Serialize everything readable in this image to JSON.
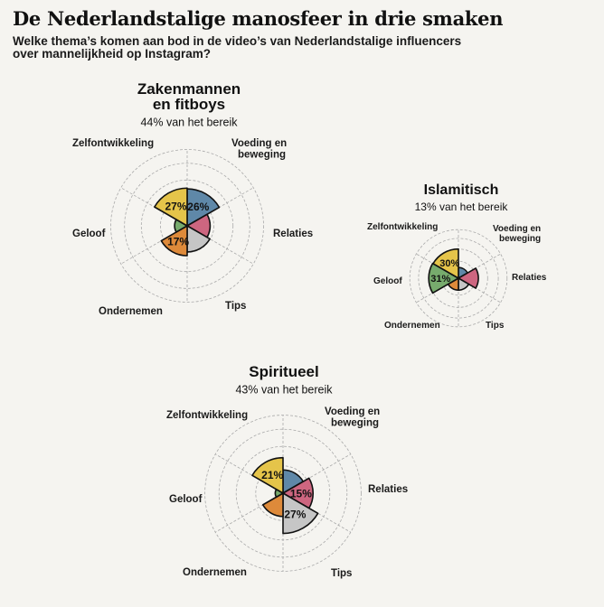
{
  "header": {
    "title": "De Nederlandstalige manosfeer in drie smaken",
    "subtitle": "Welke thema’s komen aan bod in de video’s van Nederlandstalige influencers over mannelijkheid op Instagram?"
  },
  "colors": {
    "Zelfontwikkeling": "#e5c44a",
    "Voeding en beweging": "#5f88a8",
    "Relaties": "#cd6680",
    "Tips": "#c6c6c6",
    "Ondernemen": "#de8a3a",
    "Geloof": "#77ab6d",
    "grid": "#aaaaaa",
    "outline": "#111111"
  },
  "chart_data": [
    {
      "type": "polar-area",
      "title_lines": [
        "Zakenmannen",
        "en fitboys"
      ],
      "subtitle": "44% van het bereik",
      "categories": [
        "Voeding en beweging",
        "Relaties",
        "Tips",
        "Ondernemen",
        "Geloof",
        "Zelfontwikkeling"
      ],
      "values": [
        26,
        10,
        13,
        17,
        3,
        27
      ],
      "value_labels": [
        "26%",
        "",
        "",
        "17%",
        "",
        "27%"
      ],
      "category_labels": [
        [
          "Voeding en",
          "beweging"
        ],
        [
          "Relaties"
        ],
        [
          "Tips"
        ],
        [
          "Ondernemen"
        ],
        [
          "Geloof"
        ],
        [
          "Zelfontwikkeling"
        ]
      ]
    },
    {
      "type": "polar-area",
      "title_lines": [
        "Islamitisch"
      ],
      "subtitle": "13% van het bereik",
      "categories": [
        "Voeding en beweging",
        "Relaties",
        "Tips",
        "Ondernemen",
        "Geloof",
        "Zelfontwikkeling"
      ],
      "values": [
        4,
        14,
        5,
        5,
        31,
        30
      ],
      "value_labels": [
        "",
        "",
        "",
        "",
        "31%",
        "30%"
      ],
      "category_labels": [
        [
          "Voeding en",
          "beweging"
        ],
        [
          "Relaties"
        ],
        [
          "Tips"
        ],
        [
          "Ondernemen"
        ],
        [
          "Geloof"
        ],
        [
          "Zelfontwikkeling"
        ]
      ]
    },
    {
      "type": "polar-area",
      "title_lines": [
        "Spiritueel"
      ],
      "subtitle": "43% van het bereik",
      "categories": [
        "Voeding en beweging",
        "Relaties",
        "Tips",
        "Ondernemen",
        "Geloof",
        "Zelfontwikkeling"
      ],
      "values": [
        9,
        15,
        27,
        9,
        1,
        21
      ],
      "value_labels": [
        "",
        "15%",
        "27%",
        "",
        "",
        "21%"
      ],
      "category_labels": [
        [
          "Voeding en",
          "beweging"
        ],
        [
          "Relaties"
        ],
        [
          "Tips"
        ],
        [
          "Ondernemen"
        ],
        [
          "Geloof"
        ],
        [
          "Zelfontwikkeling"
        ]
      ]
    }
  ]
}
